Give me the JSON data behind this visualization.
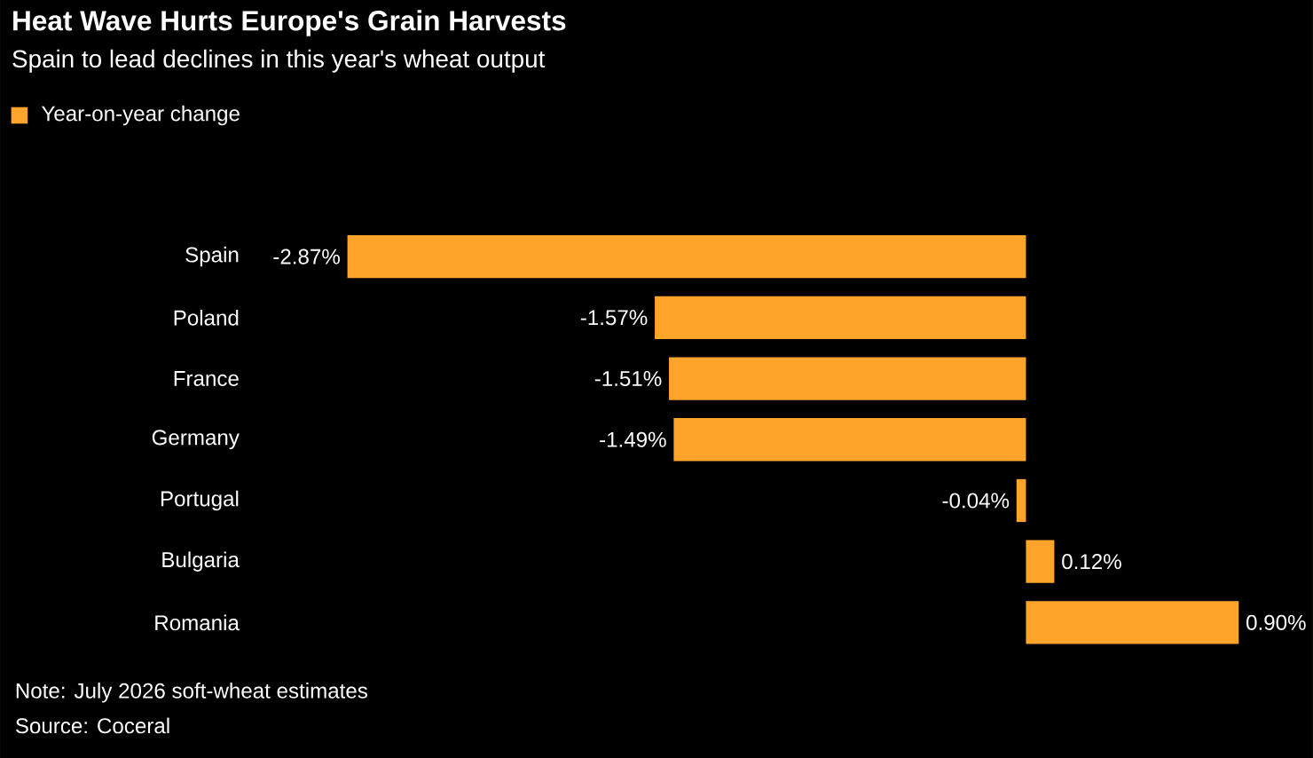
{
  "chart_data": {
    "type": "bar",
    "orientation": "horizontal",
    "title": "Heat Wave Hurts Europe's Grain Harvests",
    "subtitle": "Spain to lead declines in this year's wheat output",
    "categories": [
      "Spain",
      "Poland",
      "France",
      "Germany",
      "Portugal",
      "Bulgaria",
      "Romania"
    ],
    "series": [
      {
        "name": "Year-on-year change",
        "color": "#ffa42b",
        "values": [
          -2.87,
          -1.57,
          -1.51,
          -1.49,
          -0.04,
          0.12,
          0.9
        ],
        "value_labels": [
          "-2.87%",
          "-1.57%",
          "-1.51%",
          "-1.49%",
          "-0.04%",
          "0.12%",
          "0.90%"
        ]
      }
    ],
    "legend": "top left",
    "annotations": [
      "Note: July 2026 soft-wheat estimates",
      "Source: Coceral"
    ]
  }
}
